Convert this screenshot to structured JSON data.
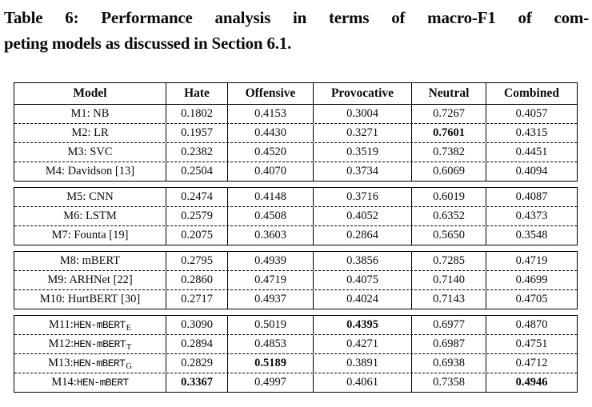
{
  "caption": {
    "lines": [
      "Table 6: Performance analysis in terms of macro-F1 of com-",
      "peting models as discussed in Section 6.1."
    ]
  },
  "table": {
    "columns": [
      "Model",
      "Hate",
      "Offensive",
      "Provocative",
      "Neutral",
      "Combined"
    ],
    "groups": [
      {
        "rows": [
          {
            "model": {
              "label": "M1: NB"
            },
            "values": [
              "0.1802",
              "0.4153",
              "0.3004",
              "0.7267",
              "0.4057"
            ],
            "bold": []
          },
          {
            "model": {
              "label": "M2: LR"
            },
            "values": [
              "0.1957",
              "0.4430",
              "0.3271",
              "0.7601",
              "0.4315"
            ],
            "bold": [
              3
            ]
          },
          {
            "model": {
              "label": "M3: SVC"
            },
            "values": [
              "0.2382",
              "0.4520",
              "0.3519",
              "0.7382",
              "0.4451"
            ],
            "bold": []
          },
          {
            "model": {
              "label": "M4: Davidson [13]"
            },
            "values": [
              "0.2504",
              "0.4070",
              "0.3734",
              "0.6069",
              "0.4094"
            ],
            "bold": []
          }
        ]
      },
      {
        "rows": [
          {
            "model": {
              "label": "M5: CNN"
            },
            "values": [
              "0.2474",
              "0.4148",
              "0.3716",
              "0.6019",
              "0.4087"
            ],
            "bold": []
          },
          {
            "model": {
              "label": "M6: LSTM"
            },
            "values": [
              "0.2579",
              "0.4508",
              "0.4052",
              "0.6352",
              "0.4373"
            ],
            "bold": []
          },
          {
            "model": {
              "label": "M7: Founta [19]"
            },
            "values": [
              "0.2075",
              "0.3603",
              "0.2864",
              "0.5650",
              "0.3548"
            ],
            "bold": []
          }
        ]
      },
      {
        "rows": [
          {
            "model": {
              "label": "M8: mBERT"
            },
            "values": [
              "0.2795",
              "0.4939",
              "0.3856",
              "0.7285",
              "0.4719"
            ],
            "bold": []
          },
          {
            "model": {
              "label": "M9: ARHNet [22]"
            },
            "values": [
              "0.2860",
              "0.4719",
              "0.4075",
              "0.7140",
              "0.4699"
            ],
            "bold": []
          },
          {
            "model": {
              "label": "M10: HurtBERT [30]"
            },
            "values": [
              "0.2717",
              "0.4937",
              "0.4024",
              "0.7143",
              "0.4705"
            ],
            "bold": []
          }
        ]
      },
      {
        "rows": [
          {
            "model": {
              "label": "M11: ",
              "mono": "HEN-mBERT",
              "sub": "E"
            },
            "values": [
              "0.3090",
              "0.5019",
              "0.4395",
              "0.6977",
              "0.4870"
            ],
            "bold": [
              2
            ]
          },
          {
            "model": {
              "label": "M12: ",
              "mono": "HEN-mBERT",
              "sub": "T"
            },
            "values": [
              "0.2894",
              "0.4853",
              "0.4271",
              "0.6987",
              "0.4751"
            ],
            "bold": []
          },
          {
            "model": {
              "label": "M13: ",
              "mono": "HEN-mBERT",
              "sub": "G"
            },
            "values": [
              "0.2829",
              "0.5189",
              "0.3891",
              "0.6938",
              "0.4712"
            ],
            "bold": [
              1
            ]
          },
          {
            "model": {
              "label": "M14: ",
              "mono": "HEN-mBERT"
            },
            "values": [
              "0.3367",
              "0.4997",
              "0.4061",
              "0.7358",
              "0.4946"
            ],
            "bold": [
              0,
              4
            ]
          }
        ]
      }
    ]
  }
}
